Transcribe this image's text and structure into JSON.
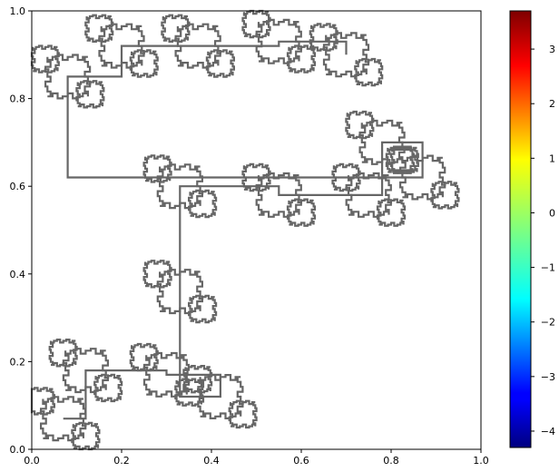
{
  "chart_data": {
    "type": "line",
    "title": "",
    "xlabel": "",
    "ylabel": "",
    "xlim": [
      0.0,
      1.0
    ],
    "ylim": [
      0.0,
      1.0
    ],
    "grid": false,
    "x_ticks": [
      "0.0",
      "0.2",
      "0.4",
      "0.6",
      "0.8",
      "1.0"
    ],
    "y_ticks": [
      "0.0",
      "0.2",
      "0.4",
      "0.6",
      "0.8",
      "1.0"
    ],
    "line_color": "#666666",
    "curve": "fractal space-filling curve (single gray polyline covering clustered square-loop regions)",
    "clusters": [
      {
        "center": [
          0.07,
          0.07
        ]
      },
      {
        "center": [
          0.12,
          0.18
        ]
      },
      {
        "center": [
          0.3,
          0.17
        ]
      },
      {
        "center": [
          0.42,
          0.12
        ]
      },
      {
        "center": [
          0.33,
          0.36
        ]
      },
      {
        "center": [
          0.33,
          0.6
        ]
      },
      {
        "center": [
          0.55,
          0.58
        ]
      },
      {
        "center": [
          0.75,
          0.58
        ]
      },
      {
        "center": [
          0.78,
          0.7
        ]
      },
      {
        "center": [
          0.87,
          0.62
        ]
      },
      {
        "center": [
          0.08,
          0.85
        ]
      },
      {
        "center": [
          0.2,
          0.92
        ]
      },
      {
        "center": [
          0.37,
          0.92
        ]
      },
      {
        "center": [
          0.55,
          0.93
        ]
      },
      {
        "center": [
          0.7,
          0.9
        ]
      }
    ],
    "colorbar": {
      "colormap": "jet",
      "range": [
        -4.3,
        3.7
      ],
      "ticks": [
        "3",
        "2",
        "1",
        "0",
        "−1",
        "−2",
        "−3",
        "−4"
      ]
    }
  }
}
